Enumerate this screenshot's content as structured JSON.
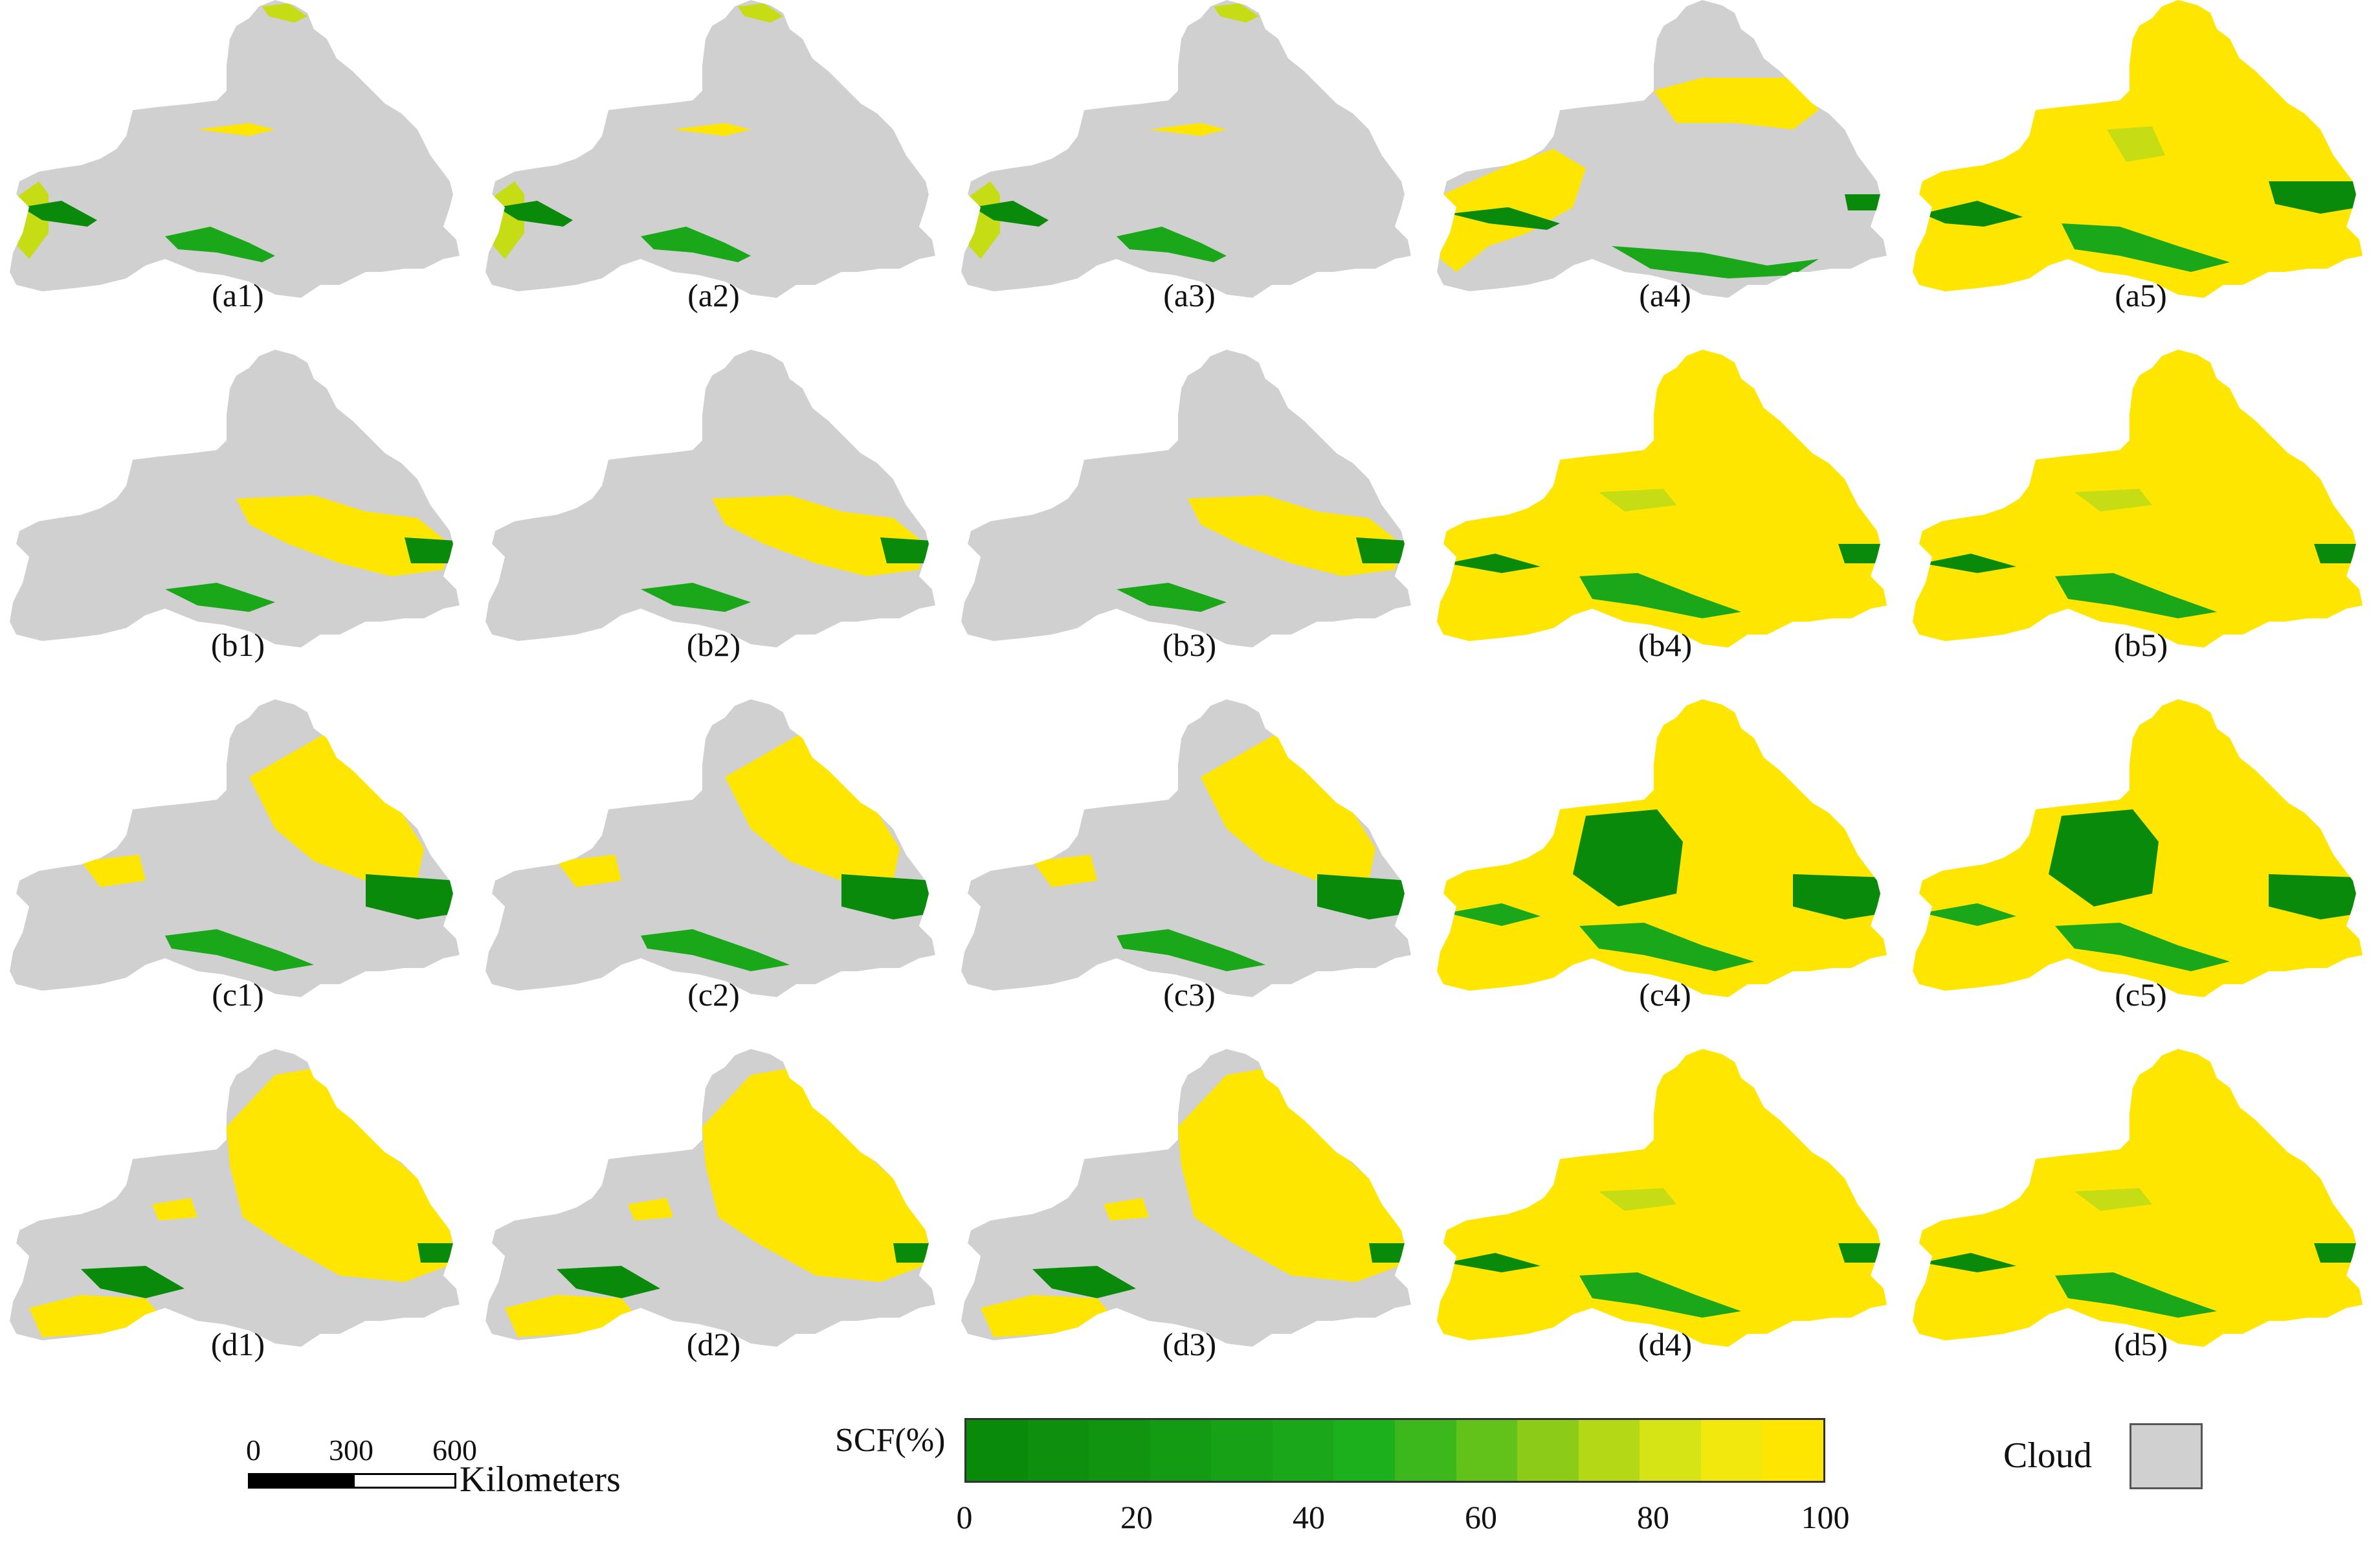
{
  "figure": {
    "panels": [
      {
        "label": "(a1)",
        "scene": "cloud_heavy"
      },
      {
        "label": "(a2)",
        "scene": "cloud_heavy"
      },
      {
        "label": "(a3)",
        "scene": "cloud_heavy"
      },
      {
        "label": "(a4)",
        "scene": "partial_snow"
      },
      {
        "label": "(a5)",
        "scene": "full_snow_mixed"
      },
      {
        "label": "(b1)",
        "scene": "cloud_east_patch"
      },
      {
        "label": "(b2)",
        "scene": "cloud_east_patch"
      },
      {
        "label": "(b3)",
        "scene": "cloud_east_patch"
      },
      {
        "label": "(b4)",
        "scene": "full_snow"
      },
      {
        "label": "(b5)",
        "scene": "full_snow"
      },
      {
        "label": "(c1)",
        "scene": "cloud_east_snow"
      },
      {
        "label": "(c2)",
        "scene": "cloud_east_snow"
      },
      {
        "label": "(c3)",
        "scene": "cloud_east_snow"
      },
      {
        "label": "(c4)",
        "scene": "full_snow_green_blocks"
      },
      {
        "label": "(c5)",
        "scene": "full_snow_green_blocks"
      },
      {
        "label": "(d1)",
        "scene": "half_snow"
      },
      {
        "label": "(d2)",
        "scene": "half_snow"
      },
      {
        "label": "(d3)",
        "scene": "half_snow"
      },
      {
        "label": "(d4)",
        "scene": "full_snow"
      },
      {
        "label": "(d5)",
        "scene": "full_snow"
      }
    ]
  },
  "scale_bar": {
    "ticks": [
      "0",
      "300",
      "600"
    ],
    "unit": "Kilometers"
  },
  "colorbar": {
    "title": "SCF(%)",
    "ticks": [
      "0",
      "20",
      "40",
      "60",
      "80",
      "100"
    ],
    "range": [
      0,
      100
    ],
    "colors": [
      "#0a8a0a",
      "#0e8f0e",
      "#119511",
      "#149b14",
      "#17a117",
      "#1aa81a",
      "#1db01d",
      "#3cb81c",
      "#62c21a",
      "#8ccc18",
      "#b4d816",
      "#d6e314",
      "#f2e80e",
      "#ffe600"
    ]
  },
  "cloud_legend": {
    "label": "Cloud",
    "color": "#d0d0d0"
  },
  "palette": {
    "cloud": "#d0d0d0",
    "snow_full": "#ffe600",
    "snow_mid": "#c6dc14",
    "snow_low": "#1aa81a",
    "snow_zero": "#0a8a0a"
  }
}
